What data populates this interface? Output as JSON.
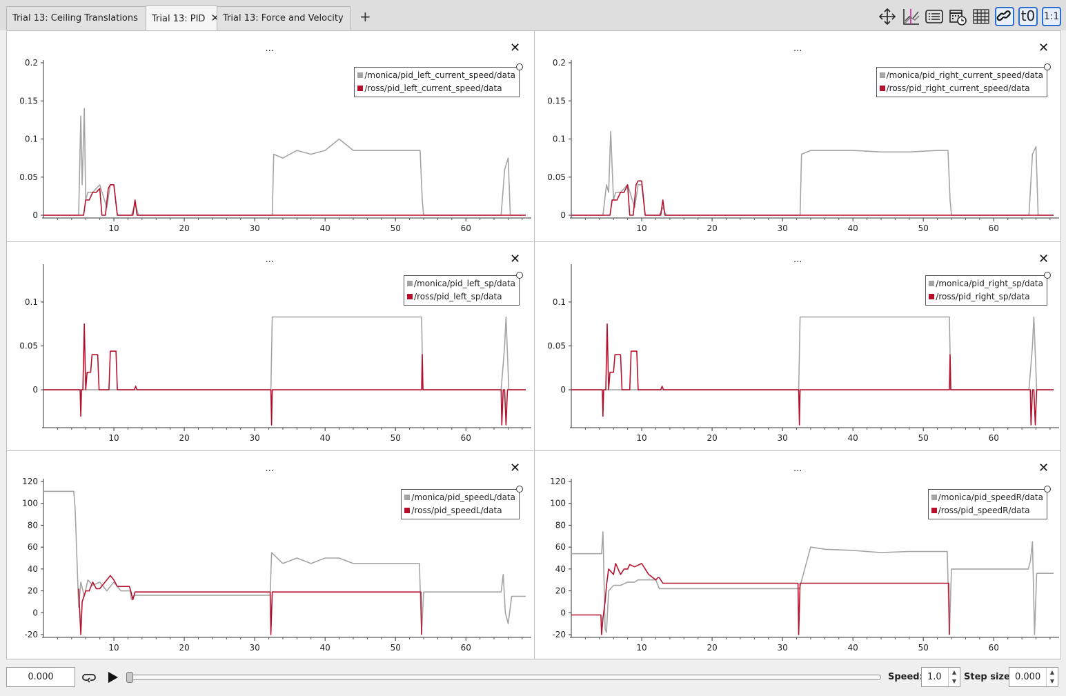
{
  "tabs": [
    {
      "label": "Trial 13: Ceiling Translations",
      "active": false
    },
    {
      "label": "Trial 13: PID",
      "active": true,
      "close": "✕"
    },
    {
      "label": "Trial 13: Force and Velocity",
      "active": false
    }
  ],
  "add_tab_label": "+",
  "toolbar": {
    "icons": [
      "move-icon",
      "line-chart-icon",
      "list-icon",
      "calendar-clock-icon",
      "grid-icon",
      "link-icon",
      "t0-icon",
      "one-to-one-icon"
    ],
    "t0_label": "t0",
    "ratio_label": "1:1"
  },
  "colors": {
    "monica": "#a4a4a4",
    "ross": "#b5112c"
  },
  "plots": [
    {
      "dots": "...",
      "close": "✕",
      "legend": [
        "/monica/pid_left_current_speed/data",
        "/ross/pid_left_current_speed/data"
      ]
    },
    {
      "dots": "...",
      "close": "✕",
      "legend": [
        "/monica/pid_right_current_speed/data",
        "/ross/pid_right_current_speed/data"
      ]
    },
    {
      "dots": "...",
      "close": "✕",
      "legend": [
        "/monica/pid_left_sp/data",
        "/ross/pid_left_sp/data"
      ]
    },
    {
      "dots": "...",
      "close": "✕",
      "legend": [
        "/monica/pid_right_sp/data",
        "/ross/pid_right_sp/data"
      ]
    },
    {
      "dots": "...",
      "close": "✕",
      "legend": [
        "/monica/pid_speedL/data",
        "/ross/pid_speedL/data"
      ]
    },
    {
      "dots": "...",
      "close": "✕",
      "legend": [
        "/monica/pid_speedR/data",
        "/ross/pid_speedR/data"
      ]
    }
  ],
  "chart_data": [
    {
      "type": "line",
      "ylim": [
        0,
        0.2
      ],
      "yticks": [
        "0",
        "0.05",
        "0.1",
        "0.15",
        "0.2"
      ],
      "xlim": [
        0,
        68.5
      ],
      "xticks": [
        "10",
        "20",
        "30",
        "40",
        "50",
        "60"
      ],
      "series": [
        {
          "name": "/monica/pid_left_current_speed/data",
          "x": [
            0,
            5,
            5.3,
            5.5,
            5.8,
            6,
            6.3,
            7,
            8,
            9,
            9.5,
            10,
            10.5,
            12.5,
            13,
            13.5,
            32.5,
            32.7,
            34,
            36,
            38,
            40,
            42,
            44,
            46,
            50,
            53.5,
            53.8,
            54,
            65,
            65.5,
            66,
            66.3,
            68.5
          ],
          "y": [
            0,
            0,
            0.13,
            0.04,
            0.14,
            0.02,
            0.03,
            0.03,
            0.04,
            0.01,
            0.04,
            0.04,
            0,
            0,
            0.015,
            0,
            0,
            0.08,
            0.075,
            0.085,
            0.08,
            0.085,
            0.1,
            0.085,
            0.085,
            0.085,
            0.085,
            0.02,
            0,
            0,
            0.06,
            0.075,
            0,
            0
          ]
        },
        {
          "name": "/ross/pid_left_current_speed/data",
          "x": [
            0,
            5.7,
            6,
            6.5,
            7,
            7.5,
            8,
            8.3,
            8.8,
            9.2,
            9.5,
            10,
            10.5,
            12.7,
            13,
            13.3,
            68.5
          ],
          "y": [
            0,
            0,
            0.02,
            0.02,
            0.03,
            0.03,
            0.035,
            0,
            0,
            0.035,
            0.04,
            0.04,
            0,
            0,
            0.02,
            0,
            0
          ]
        }
      ]
    },
    {
      "type": "line",
      "ylim": [
        0,
        0.2
      ],
      "yticks": [
        "0",
        "0.05",
        "0.1",
        "0.15",
        "0.2"
      ],
      "xlim": [
        0,
        68.5
      ],
      "xticks": [
        "10",
        "20",
        "30",
        "40",
        "50",
        "60"
      ],
      "series": [
        {
          "name": "/monica/pid_right_current_speed/data",
          "x": [
            0,
            4.5,
            5,
            5.3,
            5.6,
            6,
            6.3,
            7,
            8,
            9,
            9.5,
            10,
            10.5,
            12.5,
            13,
            13.5,
            32.5,
            32.7,
            34,
            36,
            40,
            44,
            48,
            52,
            53.5,
            53.8,
            54,
            65,
            65.5,
            66,
            66.3,
            68.5
          ],
          "y": [
            0,
            0,
            0.04,
            0.03,
            0.11,
            0.02,
            0.03,
            0.03,
            0.04,
            0.01,
            0.04,
            0.04,
            0,
            0,
            0.01,
            0,
            0,
            0.08,
            0.085,
            0.085,
            0.085,
            0.083,
            0.083,
            0.085,
            0.085,
            0.02,
            0,
            0,
            0.08,
            0.09,
            0,
            0
          ]
        },
        {
          "name": "/ross/pid_right_current_speed/data",
          "x": [
            0,
            5.5,
            5.8,
            6.5,
            7,
            7.5,
            8,
            8.3,
            8.8,
            9.2,
            9.5,
            10,
            10.5,
            12.7,
            13,
            13.3,
            68.5
          ],
          "y": [
            0,
            0,
            0.02,
            0.02,
            0.03,
            0.03,
            0.04,
            0,
            0,
            0.04,
            0.045,
            0.045,
            0,
            0,
            0.02,
            0,
            0
          ]
        }
      ]
    },
    {
      "type": "line",
      "ylim": [
        -0.04,
        0.14
      ],
      "yticks": [
        "0",
        "0.05",
        "0.1"
      ],
      "xlim": [
        0,
        68.5
      ],
      "xticks": [
        "10",
        "20",
        "30",
        "40",
        "50",
        "60"
      ],
      "series": [
        {
          "name": "/monica/pid_left_sp/data",
          "x": [
            0,
            32.3,
            32.5,
            53.7,
            53.9,
            65,
            65.5,
            65.7,
            66.1,
            68.5
          ],
          "y": [
            0,
            0,
            0.083,
            0.083,
            0,
            0,
            0.05,
            0.083,
            0,
            0
          ]
        },
        {
          "name": "/ross/pid_left_sp/data",
          "x": [
            0,
            5.2,
            5.3,
            5.4,
            5.6,
            5.8,
            6,
            6.2,
            6.7,
            6.9,
            7.7,
            7.9,
            9.3,
            9.5,
            10.3,
            10.5,
            12.9,
            13.1,
            13.3,
            32.3,
            32.4,
            32.5,
            53.7,
            53.8,
            53.9,
            65,
            65.1,
            65.3,
            65.5,
            65.7,
            65.9,
            68.5
          ],
          "y": [
            0,
            0,
            -0.03,
            0,
            0,
            0.075,
            0,
            0.02,
            0.02,
            0.04,
            0.04,
            0,
            0,
            0.044,
            0.044,
            0,
            0,
            0.004,
            0,
            0,
            -0.04,
            0,
            0,
            0.04,
            0,
            0,
            -0.04,
            0,
            0,
            -0.04,
            0,
            0
          ]
        }
      ]
    },
    {
      "type": "line",
      "ylim": [
        -0.04,
        0.14
      ],
      "yticks": [
        "0",
        "0.05",
        "0.1"
      ],
      "xlim": [
        0,
        68.5
      ],
      "xticks": [
        "10",
        "20",
        "30",
        "40",
        "50",
        "60"
      ],
      "series": [
        {
          "name": "/monica/pid_right_sp/data",
          "x": [
            0,
            32.3,
            32.5,
            53.7,
            53.9,
            65,
            65.5,
            65.7,
            66.1,
            68.5
          ],
          "y": [
            0,
            0,
            0.083,
            0.083,
            0,
            0,
            0.05,
            0.083,
            0,
            0
          ]
        },
        {
          "name": "/ross/pid_right_sp/data",
          "x": [
            0,
            4.4,
            4.5,
            4.6,
            4.9,
            5.1,
            5.3,
            5.5,
            6,
            6.2,
            7,
            7.2,
            8.3,
            8.5,
            9.3,
            9.5,
            12.7,
            12.9,
            13.1,
            32.3,
            32.4,
            32.5,
            53.7,
            53.8,
            53.9,
            65.2,
            65.3,
            65.5,
            65.7,
            65.9,
            66.1,
            68.5
          ],
          "y": [
            0,
            0,
            -0.03,
            0,
            0,
            0.075,
            0,
            0.02,
            0.02,
            0.04,
            0.04,
            0,
            0,
            0.044,
            0.044,
            0,
            0,
            0.004,
            0,
            0,
            -0.04,
            0,
            0,
            0.04,
            0,
            0,
            -0.04,
            0,
            0,
            -0.04,
            0,
            0
          ]
        }
      ]
    },
    {
      "type": "line",
      "ylim": [
        -20,
        120
      ],
      "yticks": [
        "-20",
        "0",
        "20",
        "40",
        "60",
        "80",
        "100",
        "120"
      ],
      "xlim": [
        0,
        68.5
      ],
      "xticks": [
        "10",
        "20",
        "30",
        "40",
        "50",
        "60"
      ],
      "series": [
        {
          "name": "/monica/pid_speedL/data",
          "x": [
            0,
            4.3,
            4.5,
            5,
            5.3,
            5.8,
            6.3,
            7,
            8,
            9,
            10,
            11,
            12.3,
            12.5,
            12.8,
            13,
            32.2,
            32.4,
            34,
            36,
            38,
            40,
            42,
            44,
            46,
            50,
            53.4,
            53.7,
            54,
            65,
            65.3,
            65.6,
            66,
            66.5,
            68.5
          ],
          "y": [
            111,
            111,
            95,
            5,
            28,
            15,
            30,
            25,
            28,
            20,
            28,
            20,
            20,
            12,
            15,
            16,
            16,
            55,
            45,
            50,
            45,
            50,
            50,
            45,
            45,
            45,
            45,
            -20,
            19,
            19,
            35,
            0,
            -10,
            15,
            15
          ]
        },
        {
          "name": "/ross/pid_speedL/data",
          "x": [
            0,
            4.9,
            5,
            5.3,
            5.5,
            6,
            6.5,
            7,
            7.5,
            8,
            9,
            9.5,
            10,
            10.5,
            11,
            12.2,
            12.4,
            12.7,
            13,
            32.2,
            32.3,
            32.5,
            53.6,
            53.7,
            53.9,
            68.5
          ],
          "y": [
            null,
            null,
            22,
            -20,
            10,
            20,
            20,
            28,
            22,
            22,
            30,
            34,
            30,
            24,
            24,
            24,
            20,
            12,
            19,
            19,
            -20,
            19,
            19,
            -20,
            null,
            null
          ]
        }
      ]
    },
    {
      "type": "line",
      "ylim": [
        -20,
        120
      ],
      "yticks": [
        "-20",
        "0",
        "20",
        "40",
        "60",
        "80",
        "100",
        "120"
      ],
      "xlim": [
        0,
        68.5
      ],
      "xticks": [
        "10",
        "20",
        "30",
        "40",
        "50",
        "60"
      ],
      "series": [
        {
          "name": "/monica/pid_speedR/data",
          "x": [
            0,
            4.3,
            4.5,
            4.8,
            5,
            5.3,
            6,
            7,
            8,
            9,
            9.5,
            10,
            12,
            12.5,
            13,
            32.2,
            32.4,
            34,
            36,
            40,
            44,
            48,
            52,
            53.4,
            53.7,
            54,
            64.9,
            65.2,
            65.5,
            65.8,
            66.1,
            68.5
          ],
          "y": [
            54,
            54,
            74,
            -15,
            -18,
            20,
            25,
            25,
            28,
            28,
            30,
            30,
            30,
            22,
            22,
            22,
            22,
            60,
            58,
            57,
            55,
            56,
            56,
            56,
            -20,
            40,
            40,
            47,
            65,
            -20,
            36,
            36
          ]
        },
        {
          "name": "/ross/pid_speedR/data",
          "x": [
            0,
            4.2,
            4.3,
            4.5,
            4.8,
            5,
            5.3,
            6,
            6.3,
            7,
            7.5,
            8,
            8.3,
            9,
            10,
            11,
            12,
            12.3,
            12.5,
            13,
            32.2,
            32.3,
            32.5,
            53.6,
            53.7,
            53.9,
            65.5,
            65.8,
            68.5
          ],
          "y": [
            -2,
            -2,
            -20,
            -5,
            10,
            25,
            40,
            35,
            45,
            35,
            40,
            40,
            44,
            42,
            45,
            35,
            30,
            32,
            32,
            27,
            27,
            -20,
            27,
            27,
            -20,
            null,
            null,
            -8,
            null
          ]
        }
      ]
    }
  ],
  "bottom": {
    "time_value": "0.000",
    "speed_label": "Speed:",
    "speed_value": "1.0",
    "step_label": "Step size:",
    "step_value": "0.000",
    "arrow_up": "▲",
    "arrow_down": "▼"
  }
}
